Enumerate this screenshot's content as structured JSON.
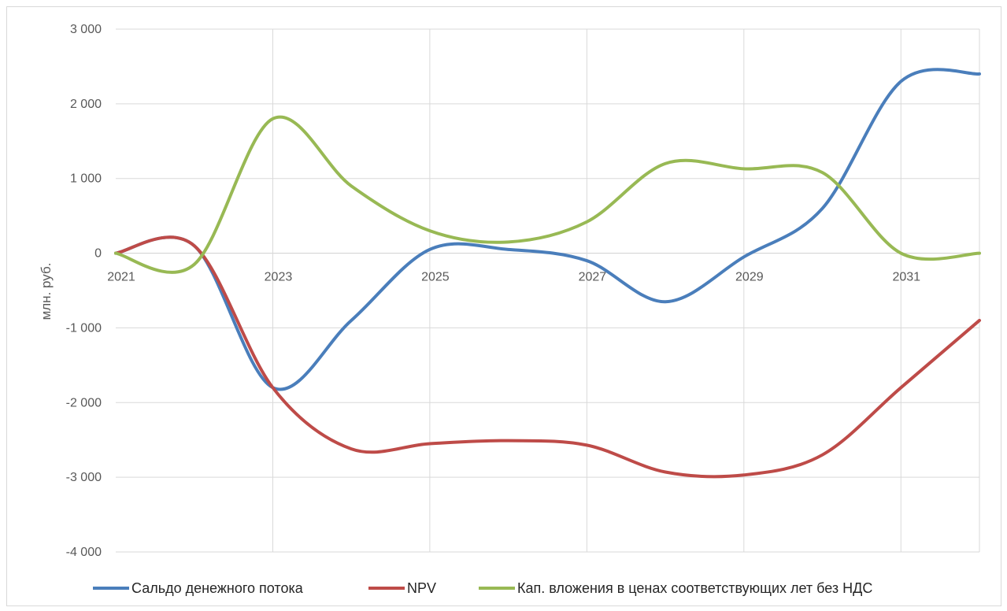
{
  "chart_data": {
    "type": "line",
    "smooth": true,
    "title": "",
    "xlabel": "",
    "ylabel": "млн. руб.",
    "ylim": [
      -4000,
      3000
    ],
    "y_ticks": [
      3000,
      2000,
      1000,
      0,
      -1000,
      -2000,
      -3000,
      -4000
    ],
    "y_tick_labels": [
      "3 000",
      "2 000",
      "1 000",
      "0",
      "-1 000",
      "-2 000",
      "-3 000",
      "-4 000"
    ],
    "x": [
      2021,
      2022,
      2023,
      2024,
      2025,
      2026,
      2027,
      2028,
      2029,
      2030,
      2031,
      2032
    ],
    "x_tick_labels": [
      "2021",
      "2023",
      "2025",
      "2027",
      "2029",
      "2031"
    ],
    "x_tick_values": [
      2021,
      2023,
      2025,
      2027,
      2029,
      2031
    ],
    "grid": true,
    "legend_position": "bottom",
    "series": [
      {
        "name": "Сальдо денежного потока",
        "color": "#4a7ebb",
        "values": [
          0,
          100,
          -1800,
          -900,
          50,
          50,
          -100,
          -650,
          -50,
          600,
          2300,
          2400
        ]
      },
      {
        "name": "NPV",
        "color": "#be4b48",
        "values": [
          0,
          100,
          -1800,
          -2620,
          -2550,
          -2510,
          -2570,
          -2930,
          -2970,
          -2700,
          -1800,
          -900
        ]
      },
      {
        "name": "Кап. вложения в ценах соответствующих лет без НДС",
        "color": "#98b954",
        "values": [
          0,
          -150,
          1800,
          900,
          300,
          150,
          420,
          1200,
          1130,
          1080,
          0,
          0
        ]
      }
    ]
  }
}
